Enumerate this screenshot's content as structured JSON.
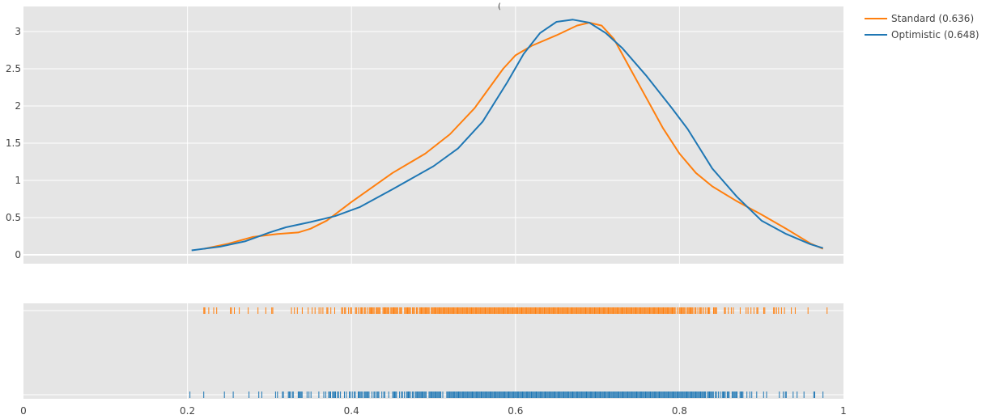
{
  "chart_data": {
    "type": "line",
    "title": "",
    "xlabel": "",
    "ylabel": "",
    "xlim": [
      0,
      1
    ],
    "ylim": [
      -0.1,
      3.3
    ],
    "grid": true,
    "legend_position": "top-right",
    "x_ticks": [
      "0",
      "0.2",
      "0.4",
      "0.6",
      "0.8",
      "1"
    ],
    "x_tick_values": [
      0,
      0.2,
      0.4,
      0.6,
      0.8,
      1
    ],
    "y_ticks": [
      "0",
      "0.5",
      "1",
      "1.5",
      "2",
      "2.5",
      "3"
    ],
    "y_tick_values": [
      0,
      0.5,
      1,
      1.5,
      2,
      2.5,
      3
    ],
    "series": [
      {
        "name": "Standard (0.636)",
        "color": "#ff7f0e",
        "x": [
          0.22,
          0.25,
          0.28,
          0.31,
          0.335,
          0.35,
          0.37,
          0.4,
          0.45,
          0.49,
          0.52,
          0.55,
          0.585,
          0.6,
          0.62,
          0.65,
          0.675,
          0.69,
          0.705,
          0.72,
          0.74,
          0.76,
          0.78,
          0.8,
          0.82,
          0.84,
          0.87,
          0.9,
          0.93,
          0.96,
          0.975
        ],
        "values": [
          0.08,
          0.15,
          0.24,
          0.28,
          0.3,
          0.35,
          0.46,
          0.71,
          1.1,
          1.36,
          1.62,
          1.97,
          2.5,
          2.68,
          2.81,
          2.95,
          3.08,
          3.12,
          3.08,
          2.9,
          2.5,
          2.1,
          1.7,
          1.36,
          1.1,
          0.92,
          0.72,
          0.54,
          0.35,
          0.15,
          0.08
        ]
      },
      {
        "name": "Optimistic (0.648)",
        "color": "#1f77b4",
        "x": [
          0.205,
          0.24,
          0.27,
          0.3,
          0.32,
          0.35,
          0.38,
          0.41,
          0.45,
          0.5,
          0.53,
          0.56,
          0.59,
          0.61,
          0.63,
          0.65,
          0.67,
          0.69,
          0.71,
          0.73,
          0.76,
          0.79,
          0.81,
          0.84,
          0.87,
          0.9,
          0.93,
          0.96,
          0.975
        ],
        "values": [
          0.06,
          0.11,
          0.18,
          0.3,
          0.37,
          0.44,
          0.52,
          0.64,
          0.88,
          1.19,
          1.43,
          1.79,
          2.32,
          2.7,
          2.98,
          3.13,
          3.16,
          3.12,
          2.98,
          2.78,
          2.4,
          1.98,
          1.69,
          1.16,
          0.78,
          0.46,
          0.28,
          0.14,
          0.09
        ]
      }
    ],
    "rug": [
      {
        "name": "Standard (0.636)",
        "color": "#ff7f0e",
        "range": [
          0.22,
          0.98
        ]
      },
      {
        "name": "Optimistic (0.648)",
        "color": "#1f77b4",
        "range": [
          0.203,
          0.975
        ]
      }
    ]
  }
}
